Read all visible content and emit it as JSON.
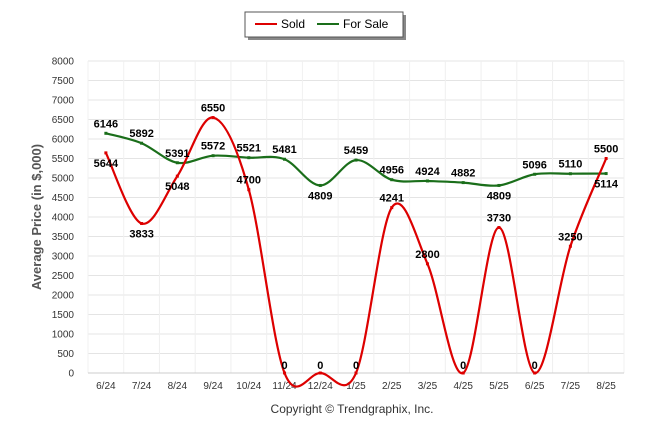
{
  "chart_data": {
    "type": "line",
    "categories": [
      "6/24",
      "7/24",
      "8/24",
      "9/24",
      "10/24",
      "11/24",
      "12/24",
      "1/25",
      "2/25",
      "3/25",
      "4/25",
      "5/25",
      "6/25",
      "7/25",
      "8/25"
    ],
    "series": [
      {
        "name": "Sold",
        "color": "#dd0000",
        "values": [
          5644,
          3833,
          5048,
          6550,
          4700,
          0,
          0,
          0,
          4241,
          2800,
          0,
          3730,
          0,
          3250,
          5500
        ]
      },
      {
        "name": "For Sale",
        "color": "#1a6e1a",
        "values": [
          6146,
          5892,
          5391,
          5572,
          5521,
          5481,
          4809,
          5459,
          4956,
          4924,
          4882,
          4809,
          5096,
          5110,
          5114
        ]
      }
    ],
    "xlabel": "",
    "ylabel": "Average Price (in $,000)",
    "ylim": [
      0,
      8000
    ],
    "yticks": [
      0,
      500,
      1000,
      1500,
      2000,
      2500,
      3000,
      3500,
      4000,
      4500,
      5000,
      5500,
      6000,
      6500,
      7000,
      7500,
      8000
    ],
    "grid": true,
    "legend_position": "top-center"
  },
  "footer": {
    "copyright": "Copyright © Trendgraphix, Inc."
  }
}
